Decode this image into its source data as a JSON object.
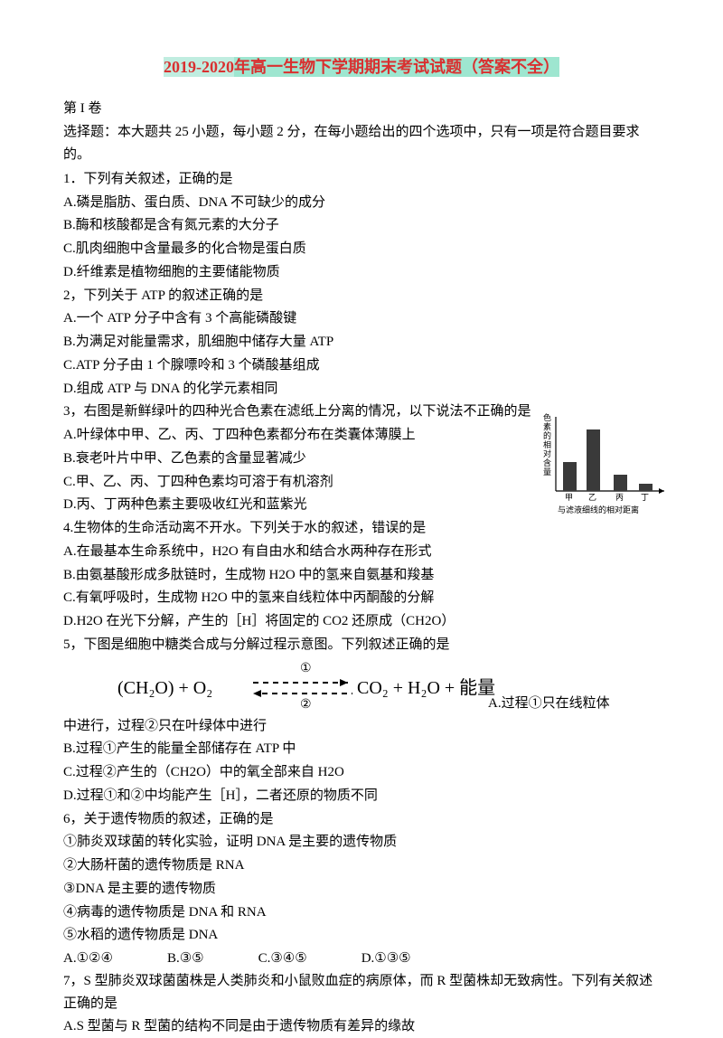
{
  "title": {
    "part1": "2019-2020",
    "part2": "年高一生物下学期期末考试试题（答案不全）"
  },
  "section_label": "第 I 卷",
  "instructions": "选择题：本大题共 25 小题，每小题 2 分，在每小题给出的四个选项中，只有一项是符合题目要求的。",
  "q1": {
    "stem": "1．下列有关叙述，正确的是",
    "A": "A.磷是脂肪、蛋白质、DNA 不可缺少的成分",
    "B": "B.酶和核酸都是含有氮元素的大分子",
    "C": "C.肌肉细胞中含量最多的化合物是蛋白质",
    "D": "D.纤维素是植物细胞的主要储能物质"
  },
  "q2": {
    "stem": "2，下列关于 ATP 的叙述正确的是",
    "A": "A.一个 ATP 分子中含有 3 个高能磷酸键",
    "B": "B.为满足对能量需求，肌细胞中储存大量 ATP",
    "C": "C.ATP 分子由 1 个腺嘌呤和 3 个磷酸基组成",
    "D": "D.组成 ATP 与 DNA 的化学元素相同"
  },
  "q3": {
    "stem": "3，右图是新鲜绿叶的四种光合色素在滤纸上分离的情况，以下说法不正确的是",
    "A": "A.叶绿体中甲、乙、丙、丁四种色素都分布在类囊体薄膜上",
    "B": "B.衰老叶片中甲、乙色素的含量显著减少",
    "C": "C.甲、乙、丙、丁四种色素均可溶于有机溶剂",
    "D": "D.丙、丁两种色素主要吸收红光和蓝紫光"
  },
  "q4": {
    "stem": "4.生物体的生命活动离不开水。下列关于水的叙述，错误的是",
    "A": "A.在最基本生命系统中，H2O 有自由水和结合水两种存在形式",
    "B": "B.由氨基酸形成多肽链时，生成物 H2O 中的氢来自氨基和羧基",
    "C": "C.有氧呼吸时，生成物 H2O 中的氢来自线粒体中丙酮酸的分解",
    "D": "D.H2O 在光下分解，产生的［H］将固定的 CO2 还原成（CH2O）"
  },
  "q5": {
    "stem": "5，下图是细胞中糖类合成与分解过程示意图。下列叙述正确的是",
    "A_tail": "A.过程①只在线粒体",
    "A_cont": "中进行，过程②只在叶绿体中进行",
    "B": "B.过程①产生的能量全部储存在 ATP 中",
    "C": "C.过程②产生的（CH2O）中的氧全部来自 H2O",
    "D": "D.过程①和②中均能产生［H］，二者还原的物质不同"
  },
  "q6": {
    "stem": "6，关于遗传物质的叙述，正确的是",
    "s1": "①肺炎双球菌的转化实验，证明 DNA 是主要的遗传物质",
    "s2": "②大肠杆菌的遗传物质是 RNA",
    "s3": "③DNA 是主要的遗传物质",
    "s4": "④病毒的遗传物质是 DNA 和 RNA",
    "s5": "⑤水稻的遗传物质是 DNA",
    "A": "A.①②④",
    "B": "B.③⑤",
    "C": "C.③④⑤",
    "D": "D.①③⑤"
  },
  "q7": {
    "stem": "7，S 型肺炎双球菌菌株是人类肺炎和小鼠败血症的病原体，而 R 型菌株却无致病性。下列有关叙述正确的是",
    "A": "A.S 型菌与 R 型菌的结构不同是由于遗传物质有差异的缘故"
  },
  "chart": {
    "type": "bar",
    "categories": [
      "甲",
      "乙",
      "丙",
      "丁"
    ],
    "values": [
      32,
      68,
      18,
      8
    ],
    "bar_color": "#3a3a3a",
    "axis_color": "#000000",
    "ylabel": "色素的相对含量",
    "xlabel": "与滤液细线的相对距离",
    "label_fontsize": 9
  },
  "formula": {
    "left": "(CH₂O)  +  O₂",
    "right": "CO₂ + H₂O + 能量",
    "top_label": "①",
    "bottom_label": "②",
    "fontsize": 20
  }
}
